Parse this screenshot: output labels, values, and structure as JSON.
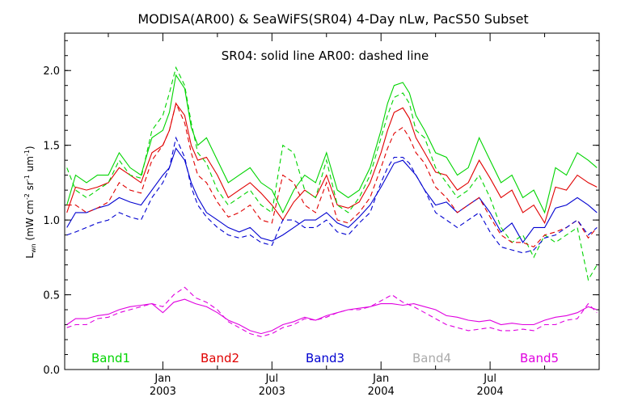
{
  "chart_data": {
    "type": "line",
    "title": "MODISA(AR00) & SeaWiFS(SR04) 4-Day nLw, PacS50 Subset",
    "subtitle": "SR04: solid line   AR00: dashed line",
    "ylabel": "Lwn (mW cm-2 sr-1 um-1)",
    "ylabel_main": "L",
    "ylabel_sub": "wn",
    "ylabel_rest": " (mW cm",
    "ylabel_exp1": "-2",
    "ylabel_mid": " sr",
    "ylabel_exp2": "-1",
    "ylabel_mid2": " um",
    "ylabel_exp3": "-1",
    "ylabel_end": ")",
    "xlabel": "",
    "xlim": [
      2002.55,
      2005.0
    ],
    "ylim": [
      0.0,
      2.25
    ],
    "yticks": [
      "0.0",
      "0.5",
      "1.0",
      "1.5",
      "2.0"
    ],
    "ytick_values": [
      0.0,
      0.5,
      1.0,
      1.5,
      2.0
    ],
    "xticks": [
      {
        "month": "Jan",
        "year": "2003",
        "value": 2003.0
      },
      {
        "month": "Jul",
        "year": "2003",
        "value": 2003.5
      },
      {
        "month": "Jan",
        "year": "2004",
        "value": 2004.0
      },
      {
        "month": "Jul",
        "year": "2004",
        "value": 2004.5
      }
    ],
    "legend": [
      {
        "label": "Band1",
        "color": "#00d400"
      },
      {
        "label": "Band2",
        "color": "#e00000"
      },
      {
        "label": "Band3",
        "color": "#0000d0"
      },
      {
        "label": "Band4",
        "color": "#aaaaaa"
      },
      {
        "label": "Band5",
        "color": "#e000e0"
      }
    ],
    "series": [
      {
        "band": "Band1",
        "style": "solid",
        "color": "#00d400",
        "x": [
          2002.56,
          2002.6,
          2002.65,
          2002.7,
          2002.75,
          2002.8,
          2002.85,
          2002.9,
          2002.95,
          2003.0,
          2003.03,
          2003.06,
          2003.1,
          2003.13,
          2003.16,
          2003.2,
          2003.25,
          2003.3,
          2003.35,
          2003.4,
          2003.45,
          2003.5,
          2003.55,
          2003.6,
          2003.65,
          2003.7,
          2003.75,
          2003.8,
          2003.85,
          2003.9,
          2003.95,
          2004.0,
          2004.03,
          2004.06,
          2004.1,
          2004.13,
          2004.16,
          2004.2,
          2004.25,
          2004.3,
          2004.35,
          2004.4,
          2004.45,
          2004.5,
          2004.55,
          2004.6,
          2004.65,
          2004.7,
          2004.75,
          2004.8,
          2004.85,
          2004.9,
          2004.95,
          2004.99
        ],
        "y": [
          1.1,
          1.3,
          1.25,
          1.3,
          1.3,
          1.45,
          1.35,
          1.3,
          1.55,
          1.6,
          1.72,
          1.97,
          1.88,
          1.62,
          1.5,
          1.55,
          1.4,
          1.25,
          1.3,
          1.35,
          1.25,
          1.2,
          1.05,
          1.2,
          1.3,
          1.25,
          1.45,
          1.2,
          1.15,
          1.2,
          1.35,
          1.6,
          1.78,
          1.9,
          1.92,
          1.85,
          1.7,
          1.6,
          1.45,
          1.42,
          1.3,
          1.35,
          1.55,
          1.4,
          1.25,
          1.3,
          1.15,
          1.2,
          1.05,
          1.35,
          1.3,
          1.45,
          1.4,
          1.35
        ]
      },
      {
        "band": "Band2",
        "style": "solid",
        "color": "#e00000",
        "x": [
          2002.56,
          2002.6,
          2002.65,
          2002.7,
          2002.75,
          2002.8,
          2002.85,
          2002.9,
          2002.95,
          2003.0,
          2003.03,
          2003.06,
          2003.1,
          2003.13,
          2003.16,
          2003.2,
          2003.25,
          2003.3,
          2003.35,
          2003.4,
          2003.45,
          2003.5,
          2003.55,
          2003.6,
          2003.65,
          2003.7,
          2003.75,
          2003.8,
          2003.85,
          2003.9,
          2003.95,
          2004.0,
          2004.03,
          2004.06,
          2004.1,
          2004.13,
          2004.16,
          2004.2,
          2004.25,
          2004.3,
          2004.35,
          2004.4,
          2004.45,
          2004.5,
          2004.55,
          2004.6,
          2004.65,
          2004.7,
          2004.75,
          2004.8,
          2004.85,
          2004.9,
          2004.95,
          2004.99
        ],
        "y": [
          1.05,
          1.22,
          1.2,
          1.22,
          1.25,
          1.35,
          1.3,
          1.25,
          1.45,
          1.5,
          1.6,
          1.78,
          1.7,
          1.5,
          1.4,
          1.42,
          1.3,
          1.15,
          1.2,
          1.25,
          1.18,
          1.1,
          1.0,
          1.12,
          1.2,
          1.15,
          1.3,
          1.1,
          1.08,
          1.12,
          1.25,
          1.45,
          1.6,
          1.72,
          1.75,
          1.68,
          1.55,
          1.45,
          1.32,
          1.3,
          1.2,
          1.25,
          1.4,
          1.28,
          1.15,
          1.2,
          1.05,
          1.1,
          0.98,
          1.22,
          1.2,
          1.3,
          1.25,
          1.22
        ]
      },
      {
        "band": "Band3",
        "style": "solid",
        "color": "#0000d0",
        "x": [
          2002.56,
          2002.6,
          2002.65,
          2002.7,
          2002.75,
          2002.8,
          2002.85,
          2002.9,
          2002.95,
          2003.0,
          2003.03,
          2003.06,
          2003.1,
          2003.13,
          2003.16,
          2003.2,
          2003.25,
          2003.3,
          2003.35,
          2003.4,
          2003.45,
          2003.5,
          2003.55,
          2003.6,
          2003.65,
          2003.7,
          2003.75,
          2003.8,
          2003.85,
          2003.9,
          2003.95,
          2004.0,
          2004.03,
          2004.06,
          2004.1,
          2004.13,
          2004.16,
          2004.2,
          2004.25,
          2004.3,
          2004.35,
          2004.4,
          2004.45,
          2004.5,
          2004.55,
          2004.6,
          2004.65,
          2004.7,
          2004.75,
          2004.8,
          2004.85,
          2004.9,
          2004.95,
          2004.99
        ],
        "y": [
          0.95,
          1.05,
          1.05,
          1.08,
          1.1,
          1.15,
          1.12,
          1.1,
          1.2,
          1.3,
          1.35,
          1.48,
          1.4,
          1.25,
          1.15,
          1.05,
          1.0,
          0.95,
          0.92,
          0.95,
          0.88,
          0.86,
          0.9,
          0.95,
          1.0,
          1.0,
          1.05,
          0.98,
          0.95,
          1.02,
          1.1,
          1.22,
          1.3,
          1.38,
          1.4,
          1.35,
          1.3,
          1.2,
          1.1,
          1.12,
          1.05,
          1.1,
          1.15,
          1.05,
          0.92,
          0.98,
          0.85,
          0.95,
          0.95,
          1.08,
          1.1,
          1.15,
          1.1,
          1.05
        ]
      },
      {
        "band": "Band5",
        "style": "solid",
        "color": "#e000e0",
        "x": [
          2002.56,
          2002.6,
          2002.65,
          2002.7,
          2002.75,
          2002.8,
          2002.85,
          2002.9,
          2002.95,
          2003.0,
          2003.05,
          2003.1,
          2003.15,
          2003.2,
          2003.25,
          2003.3,
          2003.35,
          2003.4,
          2003.45,
          2003.5,
          2003.55,
          2003.6,
          2003.65,
          2003.7,
          2003.75,
          2003.8,
          2003.85,
          2003.9,
          2003.95,
          2004.0,
          2004.05,
          2004.1,
          2004.15,
          2004.2,
          2004.25,
          2004.3,
          2004.35,
          2004.4,
          2004.45,
          2004.5,
          2004.55,
          2004.6,
          2004.65,
          2004.7,
          2004.75,
          2004.8,
          2004.85,
          2004.9,
          2004.95,
          2004.99
        ],
        "y": [
          0.3,
          0.34,
          0.34,
          0.36,
          0.37,
          0.4,
          0.42,
          0.43,
          0.44,
          0.38,
          0.45,
          0.47,
          0.44,
          0.42,
          0.38,
          0.33,
          0.3,
          0.26,
          0.24,
          0.26,
          0.3,
          0.32,
          0.35,
          0.33,
          0.36,
          0.38,
          0.4,
          0.41,
          0.42,
          0.44,
          0.44,
          0.43,
          0.44,
          0.42,
          0.4,
          0.36,
          0.35,
          0.33,
          0.32,
          0.33,
          0.3,
          0.31,
          0.3,
          0.3,
          0.33,
          0.35,
          0.36,
          0.38,
          0.42,
          0.4
        ]
      },
      {
        "band": "Band1",
        "style": "dashed",
        "color": "#00d400",
        "x": [
          2002.56,
          2002.6,
          2002.65,
          2002.7,
          2002.75,
          2002.8,
          2002.85,
          2002.9,
          2002.95,
          2003.0,
          2003.03,
          2003.06,
          2003.1,
          2003.13,
          2003.16,
          2003.2,
          2003.25,
          2003.3,
          2003.35,
          2003.4,
          2003.45,
          2003.5,
          2003.55,
          2003.6,
          2003.65,
          2003.7,
          2003.75,
          2003.8,
          2003.85,
          2003.9,
          2003.95,
          2004.0,
          2004.03,
          2004.06,
          2004.1,
          2004.13,
          2004.16,
          2004.2,
          2004.25,
          2004.3,
          2004.35,
          2004.4,
          2004.45,
          2004.5,
          2004.55,
          2004.6,
          2004.65,
          2004.7,
          2004.75,
          2004.8,
          2004.85,
          2004.9,
          2004.95,
          2004.99
        ],
        "y": [
          1.35,
          1.2,
          1.15,
          1.2,
          1.25,
          1.4,
          1.3,
          1.28,
          1.6,
          1.7,
          1.85,
          2.02,
          1.9,
          1.65,
          1.45,
          1.38,
          1.2,
          1.1,
          1.15,
          1.2,
          1.1,
          1.05,
          1.5,
          1.45,
          1.2,
          1.15,
          1.4,
          1.1,
          1.05,
          1.15,
          1.3,
          1.55,
          1.7,
          1.82,
          1.85,
          1.78,
          1.6,
          1.55,
          1.35,
          1.25,
          1.15,
          1.2,
          1.3,
          1.15,
          0.95,
          0.85,
          0.9,
          0.75,
          0.9,
          0.85,
          0.9,
          0.95,
          0.6,
          0.7
        ]
      },
      {
        "band": "Band2",
        "style": "dashed",
        "color": "#e00000",
        "x": [
          2002.56,
          2002.6,
          2002.65,
          2002.7,
          2002.75,
          2002.8,
          2002.85,
          2002.9,
          2002.95,
          2003.0,
          2003.03,
          2003.06,
          2003.1,
          2003.13,
          2003.16,
          2003.2,
          2003.25,
          2003.3,
          2003.35,
          2003.4,
          2003.45,
          2003.5,
          2003.55,
          2003.6,
          2003.65,
          2003.7,
          2003.75,
          2003.8,
          2003.85,
          2003.9,
          2003.95,
          2004.0,
          2004.03,
          2004.06,
          2004.1,
          2004.13,
          2004.16,
          2004.2,
          2004.25,
          2004.3,
          2004.35,
          2004.4,
          2004.45,
          2004.5,
          2004.55,
          2004.6,
          2004.65,
          2004.7,
          2004.75,
          2004.8,
          2004.85,
          2004.9,
          2004.95,
          2004.99
        ],
        "y": [
          1.1,
          1.1,
          1.05,
          1.08,
          1.12,
          1.25,
          1.2,
          1.18,
          1.4,
          1.5,
          1.6,
          1.78,
          1.65,
          1.45,
          1.3,
          1.25,
          1.12,
          1.02,
          1.05,
          1.1,
          1.0,
          0.98,
          1.3,
          1.25,
          1.1,
          1.05,
          1.25,
          1.0,
          0.98,
          1.05,
          1.15,
          1.35,
          1.48,
          1.58,
          1.62,
          1.55,
          1.45,
          1.38,
          1.22,
          1.15,
          1.05,
          1.1,
          1.15,
          1.02,
          0.9,
          0.85,
          0.85,
          0.82,
          0.9,
          0.92,
          0.95,
          1.0,
          0.88,
          0.95
        ]
      },
      {
        "band": "Band3",
        "style": "dashed",
        "color": "#0000d0",
        "x": [
          2002.56,
          2002.6,
          2002.65,
          2002.7,
          2002.75,
          2002.8,
          2002.85,
          2002.9,
          2002.95,
          2003.0,
          2003.03,
          2003.06,
          2003.1,
          2003.13,
          2003.16,
          2003.2,
          2003.25,
          2003.3,
          2003.35,
          2003.4,
          2003.45,
          2003.5,
          2003.55,
          2003.6,
          2003.65,
          2003.7,
          2003.75,
          2003.8,
          2003.85,
          2003.9,
          2003.95,
          2004.0,
          2004.03,
          2004.06,
          2004.1,
          2004.13,
          2004.16,
          2004.2,
          2004.25,
          2004.3,
          2004.35,
          2004.4,
          2004.45,
          2004.5,
          2004.55,
          2004.6,
          2004.65,
          2004.7,
          2004.75,
          2004.8,
          2004.85,
          2004.9,
          2004.95,
          2004.99
        ],
        "y": [
          0.9,
          0.92,
          0.95,
          0.98,
          1.0,
          1.05,
          1.02,
          1.0,
          1.15,
          1.25,
          1.35,
          1.55,
          1.42,
          1.22,
          1.1,
          1.02,
          0.95,
          0.9,
          0.88,
          0.9,
          0.85,
          0.83,
          1.0,
          1.0,
          0.95,
          0.95,
          1.0,
          0.92,
          0.9,
          0.98,
          1.05,
          1.25,
          1.35,
          1.42,
          1.42,
          1.38,
          1.3,
          1.2,
          1.05,
          1.0,
          0.95,
          1.0,
          1.05,
          0.92,
          0.82,
          0.8,
          0.78,
          0.8,
          0.88,
          0.9,
          0.95,
          1.0,
          0.9,
          0.95
        ]
      },
      {
        "band": "Band5",
        "style": "dashed",
        "color": "#e000e0",
        "x": [
          2002.56,
          2002.6,
          2002.65,
          2002.7,
          2002.75,
          2002.8,
          2002.85,
          2002.9,
          2002.95,
          2003.0,
          2003.05,
          2003.1,
          2003.15,
          2003.2,
          2003.25,
          2003.3,
          2003.35,
          2003.4,
          2003.45,
          2003.5,
          2003.55,
          2003.6,
          2003.65,
          2003.7,
          2003.75,
          2003.8,
          2003.85,
          2003.9,
          2003.95,
          2004.0,
          2004.05,
          2004.1,
          2004.15,
          2004.2,
          2004.25,
          2004.3,
          2004.35,
          2004.4,
          2004.45,
          2004.5,
          2004.55,
          2004.6,
          2004.65,
          2004.7,
          2004.75,
          2004.8,
          2004.85,
          2004.9,
          2004.95,
          2004.99
        ],
        "y": [
          0.28,
          0.3,
          0.3,
          0.34,
          0.35,
          0.38,
          0.4,
          0.42,
          0.44,
          0.42,
          0.5,
          0.55,
          0.48,
          0.45,
          0.4,
          0.32,
          0.28,
          0.24,
          0.22,
          0.24,
          0.28,
          0.3,
          0.34,
          0.33,
          0.35,
          0.38,
          0.4,
          0.4,
          0.42,
          0.46,
          0.5,
          0.45,
          0.42,
          0.38,
          0.34,
          0.3,
          0.28,
          0.26,
          0.27,
          0.28,
          0.26,
          0.26,
          0.27,
          0.26,
          0.3,
          0.3,
          0.33,
          0.34,
          0.44,
          0.38
        ]
      }
    ]
  }
}
